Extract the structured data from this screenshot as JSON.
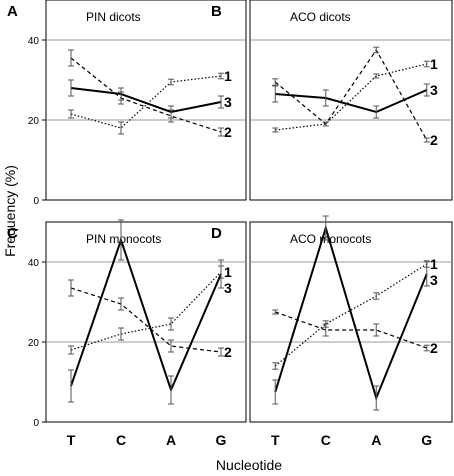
{
  "chart_data": {
    "type": "line",
    "ylabel": "Frequency (%)",
    "xlabel": "Nucleotide",
    "categories": [
      "T",
      "C",
      "A",
      "G"
    ],
    "ylim": [
      0,
      50
    ],
    "yticks": [
      0,
      20,
      40
    ],
    "grid": "horizontal at 20 and 40",
    "panels": [
      {
        "letter": "A",
        "title": "PIN dicots",
        "series": [
          {
            "label": "1",
            "style": "dotted",
            "values": [
              21.5,
              18,
              29.5,
              31
            ],
            "errors": [
              1,
              1.5,
              0.7,
              0.7
            ]
          },
          {
            "label": "2",
            "style": "dashed",
            "values": [
              35.5,
              25.5,
              21,
              17
            ],
            "errors": [
              2,
              1.5,
              1.5,
              1
            ]
          },
          {
            "label": "3",
            "style": "solid",
            "values": [
              28,
              26.5,
              22,
              24.5
            ],
            "errors": [
              2,
              1.5,
              1.5,
              1.5
            ]
          }
        ]
      },
      {
        "letter": "B",
        "title": "ACO dicots",
        "series": [
          {
            "label": "1",
            "style": "dotted",
            "values": [
              17.5,
              19,
              31,
              34
            ],
            "errors": [
              0.5,
              0.5,
              0.5,
              0.7
            ]
          },
          {
            "label": "2",
            "style": "dashed",
            "values": [
              29.5,
              19,
              37.5,
              15
            ],
            "errors": [
              0.8,
              0.5,
              0.7,
              0.5
            ]
          },
          {
            "label": "3",
            "style": "solid",
            "values": [
              26.5,
              25.5,
              22,
              27.5
            ],
            "errors": [
              2,
              2,
              1.5,
              1.5
            ]
          }
        ]
      },
      {
        "letter": "C",
        "title": "PIN monocots",
        "series": [
          {
            "label": "1",
            "style": "dotted",
            "values": [
              18,
              22,
              24.5,
              37.5
            ],
            "errors": [
              1,
              1.5,
              1.5,
              1.5
            ]
          },
          {
            "label": "2",
            "style": "dashed",
            "values": [
              33.5,
              29.5,
              19,
              17.5
            ],
            "errors": [
              2,
              1.5,
              1.5,
              1
            ]
          },
          {
            "label": "3",
            "style": "solid",
            "values": [
              9,
              45.5,
              8,
              37
            ],
            "errors": [
              4,
              5,
              3.5,
              3.5
            ]
          }
        ]
      },
      {
        "letter": "D",
        "title": "ACO monocots",
        "series": [
          {
            "label": "1",
            "style": "dotted",
            "values": [
              14,
              24.5,
              31.5,
              39.5
            ],
            "errors": [
              0.8,
              0.8,
              0.8,
              0.8
            ]
          },
          {
            "label": "2",
            "style": "dashed",
            "values": [
              27.5,
              23,
              23,
              18.5
            ],
            "errors": [
              0.5,
              1.5,
              1.5,
              0.7
            ]
          },
          {
            "label": "3",
            "style": "solid",
            "values": [
              7.5,
              48.5,
              6,
              37
            ],
            "errors": [
              3,
              3,
              3,
              3
            ]
          }
        ]
      }
    ]
  }
}
